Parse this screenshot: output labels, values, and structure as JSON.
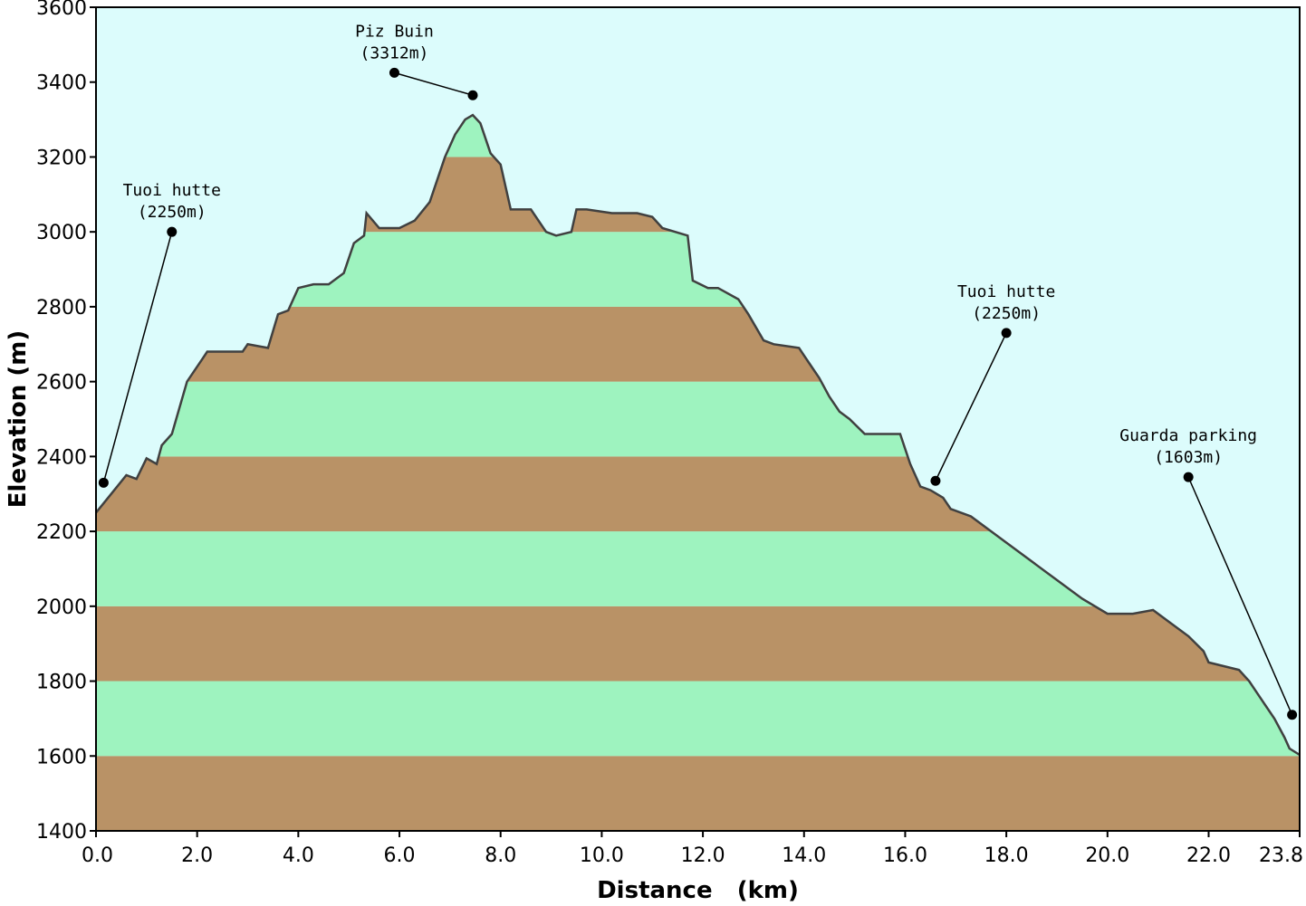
{
  "chart_data": {
    "type": "area",
    "title": "",
    "xlabel": "Distance   (km)",
    "ylabel": "Elevation (m)",
    "xlim": [
      0,
      23.8
    ],
    "ylim": [
      1400,
      3600
    ],
    "x_ticks": [
      "0.0",
      "2.0",
      "4.0",
      "6.0",
      "8.0",
      "10.0",
      "12.0",
      "14.0",
      "16.0",
      "18.0",
      "20.0",
      "22.0",
      "23.8"
    ],
    "x_tick_values": [
      0,
      2,
      4,
      6,
      8,
      10,
      12,
      14,
      16,
      18,
      20,
      22,
      23.8
    ],
    "y_ticks": [
      "1400",
      "1600",
      "1800",
      "2000",
      "2200",
      "2400",
      "2600",
      "2800",
      "3000",
      "3200",
      "3400",
      "3600"
    ],
    "y_tick_values": [
      1400,
      1600,
      1800,
      2000,
      2200,
      2400,
      2600,
      2800,
      3000,
      3200,
      3400,
      3600
    ],
    "grid": false,
    "band_step": 200,
    "series": [
      {
        "points": [
          [
            0,
            2250
          ],
          [
            0.3,
            2300
          ],
          [
            0.6,
            2350
          ],
          [
            0.8,
            2340
          ],
          [
            1.0,
            2395
          ],
          [
            1.2,
            2380
          ],
          [
            1.3,
            2430
          ],
          [
            1.5,
            2460
          ],
          [
            1.8,
            2600
          ],
          [
            2.1,
            2660
          ],
          [
            2.2,
            2680
          ],
          [
            2.9,
            2680
          ],
          [
            3.0,
            2700
          ],
          [
            3.4,
            2690
          ],
          [
            3.6,
            2780
          ],
          [
            3.8,
            2790
          ],
          [
            4.0,
            2850
          ],
          [
            4.3,
            2860
          ],
          [
            4.6,
            2860
          ],
          [
            4.9,
            2890
          ],
          [
            5.1,
            2970
          ],
          [
            5.3,
            2990
          ],
          [
            5.35,
            3050
          ],
          [
            5.6,
            3010
          ],
          [
            6.0,
            3010
          ],
          [
            6.3,
            3030
          ],
          [
            6.6,
            3080
          ],
          [
            6.9,
            3200
          ],
          [
            7.1,
            3260
          ],
          [
            7.3,
            3300
          ],
          [
            7.45,
            3312
          ],
          [
            7.6,
            3290
          ],
          [
            7.8,
            3210
          ],
          [
            8.0,
            3180
          ],
          [
            8.2,
            3060
          ],
          [
            8.6,
            3060
          ],
          [
            8.9,
            3000
          ],
          [
            9.1,
            2990
          ],
          [
            9.4,
            3000
          ],
          [
            9.5,
            3060
          ],
          [
            9.7,
            3060
          ],
          [
            10.2,
            3050
          ],
          [
            10.7,
            3050
          ],
          [
            11.0,
            3040
          ],
          [
            11.2,
            3010
          ],
          [
            11.7,
            2990
          ],
          [
            11.8,
            2870
          ],
          [
            12.1,
            2850
          ],
          [
            12.3,
            2850
          ],
          [
            12.7,
            2820
          ],
          [
            12.9,
            2780
          ],
          [
            13.2,
            2710
          ],
          [
            13.4,
            2700
          ],
          [
            13.9,
            2690
          ],
          [
            14.1,
            2650
          ],
          [
            14.3,
            2610
          ],
          [
            14.5,
            2560
          ],
          [
            14.7,
            2520
          ],
          [
            14.9,
            2500
          ],
          [
            15.2,
            2460
          ],
          [
            15.5,
            2460
          ],
          [
            15.9,
            2460
          ],
          [
            16.1,
            2380
          ],
          [
            16.3,
            2320
          ],
          [
            16.5,
            2310
          ],
          [
            16.75,
            2290
          ],
          [
            16.9,
            2260
          ],
          [
            17.3,
            2240
          ],
          [
            18.0,
            2170
          ],
          [
            18.8,
            2090
          ],
          [
            19.5,
            2020
          ],
          [
            20.0,
            1980
          ],
          [
            20.5,
            1980
          ],
          [
            20.9,
            1990
          ],
          [
            21.2,
            1960
          ],
          [
            21.6,
            1920
          ],
          [
            21.9,
            1880
          ],
          [
            22.0,
            1850
          ],
          [
            22.3,
            1840
          ],
          [
            22.6,
            1830
          ],
          [
            22.8,
            1800
          ],
          [
            23.0,
            1760
          ],
          [
            23.3,
            1700
          ],
          [
            23.5,
            1650
          ],
          [
            23.6,
            1620
          ],
          [
            23.8,
            1603
          ]
        ]
      }
    ],
    "annotations": [
      {
        "line1": "Tuoi hutte",
        "line2": "(2250m)",
        "label_x": 1.5,
        "label_y": 3000,
        "target_x": 0.15,
        "target_y": 2330
      },
      {
        "line1": "Piz Buin",
        "line2": "(3312m)",
        "label_x": 5.9,
        "label_y": 3425,
        "target_x": 7.45,
        "target_y": 3365
      },
      {
        "line1": "Tuoi hutte",
        "line2": "(2250m)",
        "label_x": 18.0,
        "label_y": 2730,
        "target_x": 16.6,
        "target_y": 2335
      },
      {
        "line1": "Guarda parking",
        "line2": "(1603m)",
        "label_x": 21.6,
        "label_y": 2345,
        "target_x": 23.65,
        "target_y": 1710
      }
    ],
    "colors": {
      "sky": "#dcfcfc",
      "band_brown": "#b99266",
      "band_green": "#9ef3bf",
      "outline": "#404040",
      "axis": "#000000"
    }
  }
}
